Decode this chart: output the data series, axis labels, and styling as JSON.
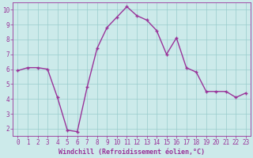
{
  "x": [
    0,
    1,
    2,
    3,
    4,
    5,
    6,
    7,
    8,
    9,
    10,
    11,
    12,
    13,
    14,
    15,
    16,
    17,
    18,
    19,
    20,
    21,
    22,
    23
  ],
  "y": [
    5.9,
    6.1,
    6.1,
    6.0,
    4.1,
    1.9,
    1.8,
    4.8,
    7.4,
    8.8,
    9.5,
    10.2,
    9.6,
    9.3,
    8.6,
    7.0,
    8.1,
    6.1,
    5.8,
    4.5,
    4.5,
    4.5,
    4.1,
    4.4
  ],
  "line_color": "#993399",
  "marker": "+",
  "bg_color": "#cceaea",
  "grid_color": "#99cccc",
  "xlabel": "Windchill (Refroidissement éolien,°C)",
  "xlim": [
    -0.5,
    23.5
  ],
  "ylim": [
    1.5,
    10.5
  ],
  "yticks": [
    2,
    3,
    4,
    5,
    6,
    7,
    8,
    9,
    10
  ],
  "xticks": [
    0,
    1,
    2,
    3,
    4,
    5,
    6,
    7,
    8,
    9,
    10,
    11,
    12,
    13,
    14,
    15,
    16,
    17,
    18,
    19,
    20,
    21,
    22,
    23
  ],
  "tick_color": "#993399",
  "label_color": "#993399",
  "axis_color": "#993399",
  "tick_fontsize": 5.5,
  "xlabel_fontsize": 6.0,
  "linewidth": 1.0,
  "markersize": 3,
  "markeredgewidth": 1.0
}
